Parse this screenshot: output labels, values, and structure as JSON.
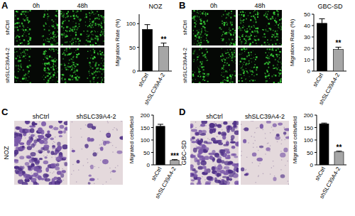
{
  "panels": [
    {
      "label": "A",
      "columns": [
        "0h",
        "48h"
      ],
      "rows": [
        "shCtrl",
        "shSLC39A4-2"
      ]
    },
    {
      "label": "B",
      "columns": [
        "0h",
        "48h"
      ],
      "rows": [
        "shCtrl",
        "shSLC39A4-2"
      ]
    },
    {
      "label": "C",
      "side_label": "NOZ",
      "columns": [
        "shCtrl",
        "shSLC39A4-2"
      ]
    },
    {
      "label": "D",
      "side_label": "GBC-SD",
      "columns": [
        "shCtrl",
        "shSLC39A4-2"
      ]
    }
  ],
  "chart_data": [
    {
      "type": "bar",
      "title": "NOZ",
      "y_label": "Migration Rate (%)",
      "categories": [
        "shCtrl",
        "shSLC39A4-2"
      ],
      "values": [
        88,
        52
      ],
      "errors": [
        10,
        7
      ],
      "colors": [
        "#000000",
        "#a6a6a6"
      ],
      "ylim": [
        0,
        120
      ],
      "yticks": [
        0,
        50,
        100
      ],
      "annotations": [
        {
          "x": "shSLC39A4-2",
          "text": "**"
        }
      ]
    },
    {
      "type": "bar",
      "title": "GBC-SD",
      "y_label": "Migration Rate (%)",
      "categories": [
        "shCtrl",
        "shSLC39A4-2"
      ],
      "values": [
        42,
        19
      ],
      "errors": [
        4,
        2
      ],
      "colors": [
        "#000000",
        "#a6a6a6"
      ],
      "ylim": [
        0,
        50
      ],
      "yticks": [
        0,
        10,
        20,
        30,
        40,
        50
      ],
      "annotations": [
        {
          "x": "shSLC39A4-2",
          "text": "**"
        }
      ]
    },
    {
      "type": "bar",
      "y_label": "Migrated cells/field",
      "categories": [
        "shCtrl",
        "shSLC39A4-2"
      ],
      "values": [
        155,
        18
      ],
      "errors": [
        8,
        3
      ],
      "colors": [
        "#000000",
        "#a6a6a6"
      ],
      "ylim": [
        0,
        200
      ],
      "yticks": [
        0,
        50,
        100,
        150,
        200
      ],
      "annotations": [
        {
          "x": "shSLC39A4-2",
          "text": "***"
        }
      ]
    },
    {
      "type": "bar",
      "y_label": "Migrated cells/field",
      "categories": [
        "shCtrl",
        "shSLC39A4-2"
      ],
      "values": [
        165,
        52
      ],
      "errors": [
        3,
        3
      ],
      "colors": [
        "#000000",
        "#a6a6a6"
      ],
      "ylim": [
        0,
        200
      ],
      "yticks": [
        0,
        50,
        100,
        150,
        200
      ],
      "annotations": [
        {
          "x": "shSLC39A4-2",
          "text": "**"
        }
      ]
    }
  ]
}
